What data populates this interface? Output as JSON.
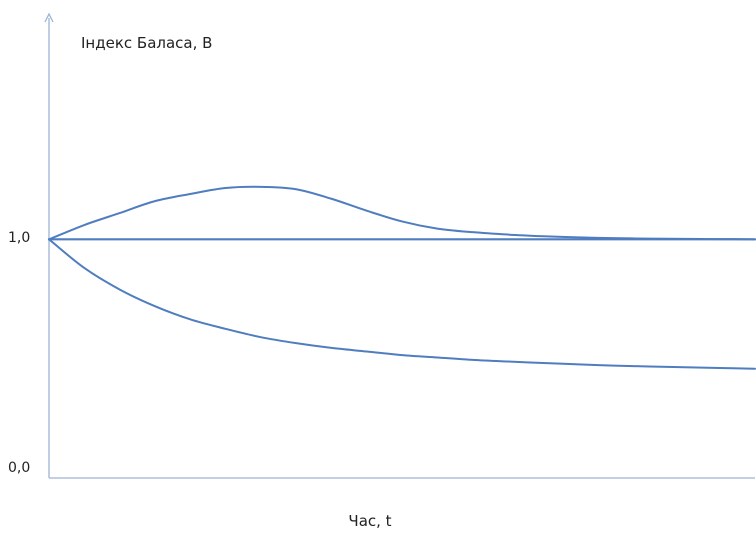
{
  "chart_data": {
    "type": "line",
    "title": "",
    "xlabel": "Час, t",
    "ylabel": "Індекс Баласа, B",
    "y_ticks": [
      "0,0",
      "1,0"
    ],
    "ylim": [
      0,
      1.5
    ],
    "xlim": [
      0,
      10
    ],
    "grid": false,
    "legend": "none",
    "line_color": "#4f7dc0",
    "axis_color": "#9db3d6",
    "x": [
      0,
      0.5,
      1,
      1.5,
      2,
      2.5,
      3,
      3.5,
      4,
      4.5,
      5,
      5.5,
      6,
      6.5,
      7,
      7.5,
      8,
      8.5,
      9,
      9.5,
      10
    ],
    "series": [
      {
        "values": [
          1.0,
          1.06,
          1.11,
          1.16,
          1.19,
          1.215,
          1.22,
          1.21,
          1.17,
          1.12,
          1.075,
          1.045,
          1.03,
          1.02,
          1.013,
          1.008,
          1.005,
          1.003,
          1.002,
          1.001,
          1.0
        ]
      },
      {
        "values": [
          1.0,
          1.0,
          1.0,
          1.0,
          1.0,
          1.0,
          1.0,
          1.0,
          1.0,
          1.0,
          1.0,
          1.0,
          1.0,
          1.0,
          1.0,
          1.0,
          1.0,
          1.0,
          1.0,
          1.0,
          1.0
        ]
      },
      {
        "values": [
          1.0,
          0.88,
          0.79,
          0.72,
          0.665,
          0.625,
          0.59,
          0.565,
          0.545,
          0.53,
          0.515,
          0.505,
          0.495,
          0.488,
          0.482,
          0.476,
          0.471,
          0.467,
          0.464,
          0.461,
          0.458
        ]
      }
    ]
  }
}
